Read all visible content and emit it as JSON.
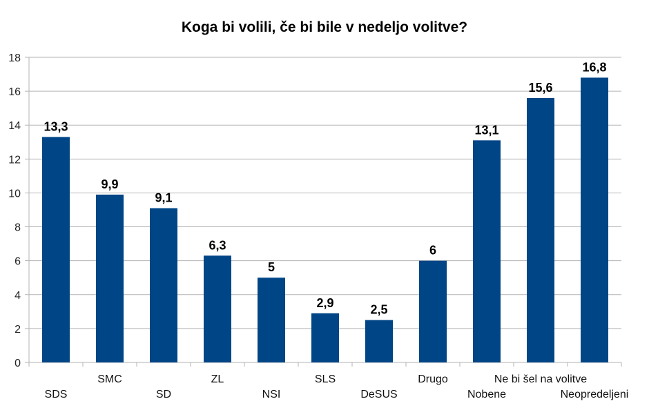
{
  "chart_data": {
    "type": "bar",
    "title": "Koga bi volili, če bi bile v nedeljo volitve?",
    "categories": [
      "SDS",
      "SMC",
      "SD",
      "ZL",
      "NSI",
      "SLS",
      "DeSUS",
      "Drugo",
      "Nobene",
      "Ne bi šel na volitve",
      "Neopredeljeni"
    ],
    "values": [
      13.3,
      9.9,
      9.1,
      6.3,
      5,
      2.9,
      2.5,
      6,
      13.1,
      15.6,
      16.8
    ],
    "data_labels": [
      "13,3",
      "9,9",
      "9,1",
      "6,3",
      "5",
      "2,9",
      "2,5",
      "6",
      "13,1",
      "15,6",
      "16,8"
    ],
    "xlabel": "",
    "ylabel": "",
    "ylim": [
      0,
      18
    ],
    "yticks": [
      0,
      2,
      4,
      6,
      8,
      10,
      12,
      14,
      16,
      18
    ],
    "grid": true,
    "bar_color": "#004586"
  }
}
